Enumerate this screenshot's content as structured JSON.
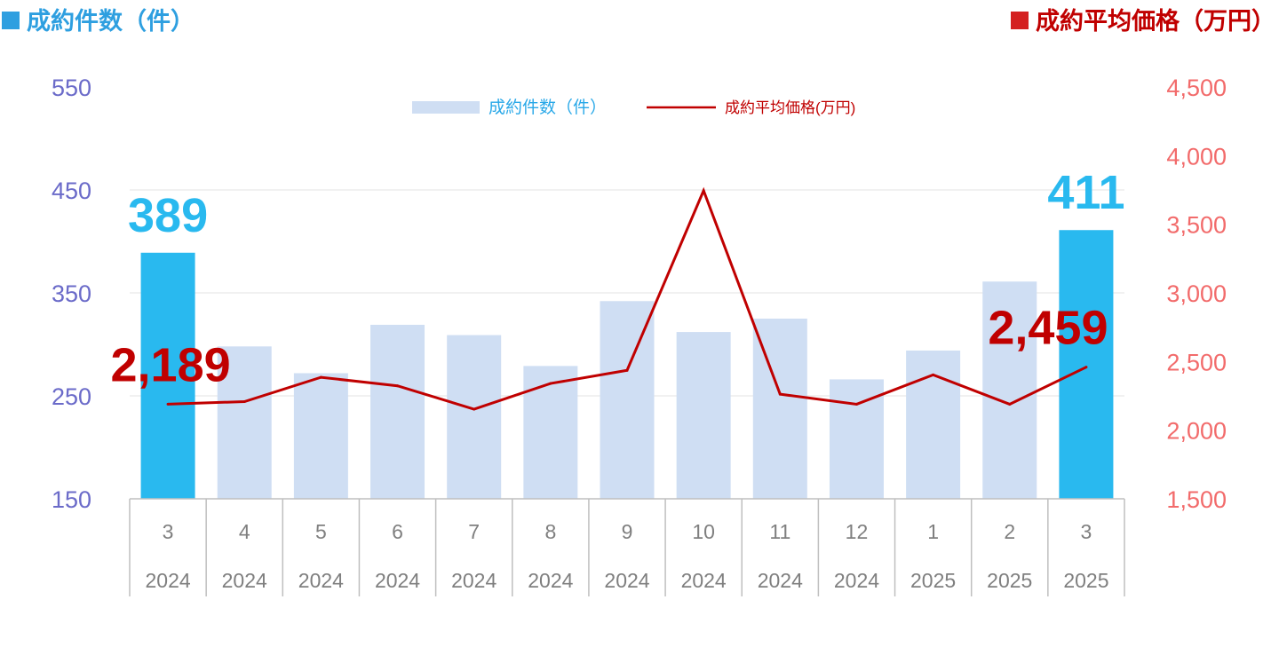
{
  "header": {
    "left_title": "成約件数（件）",
    "right_title": "成約平均価格（万円）"
  },
  "chart_data": {
    "type": "bar+line",
    "categories": [
      {
        "month": "3",
        "year": "2024"
      },
      {
        "month": "4",
        "year": "2024"
      },
      {
        "month": "5",
        "year": "2024"
      },
      {
        "month": "6",
        "year": "2024"
      },
      {
        "month": "7",
        "year": "2024"
      },
      {
        "month": "8",
        "year": "2024"
      },
      {
        "month": "9",
        "year": "2024"
      },
      {
        "month": "10",
        "year": "2024"
      },
      {
        "month": "11",
        "year": "2024"
      },
      {
        "month": "12",
        "year": "2024"
      },
      {
        "month": "1",
        "year": "2025"
      },
      {
        "month": "2",
        "year": "2025"
      },
      {
        "month": "3",
        "year": "2025"
      }
    ],
    "series": [
      {
        "name": "成約件数（件）",
        "type": "bar",
        "axis": "left",
        "color": "#cfdef3",
        "highlight_color": "#29b9ef",
        "highlight_indices": [
          0,
          12
        ],
        "values": [
          389,
          298,
          272,
          319,
          309,
          279,
          342,
          312,
          325,
          266,
          294,
          361,
          411
        ]
      },
      {
        "name": "成約平均価格(万円)",
        "type": "line",
        "axis": "right",
        "color": "#c00000",
        "values": [
          2189,
          2208,
          2385,
          2323,
          2153,
          2340,
          2436,
          3745,
          2262,
          2189,
          2403,
          2189,
          2459
        ]
      }
    ],
    "y_left": {
      "min": 150,
      "max": 550,
      "ticks": [
        "150",
        "250",
        "350",
        "450",
        "550"
      ]
    },
    "y_right": {
      "min": 1500,
      "max": 4500,
      "ticks": [
        "1,500",
        "2,000",
        "2,500",
        "3,000",
        "3,500",
        "4,000",
        "4,500"
      ]
    },
    "annotations": [
      {
        "index": 0,
        "series": "bar",
        "text": "389",
        "color": "#29b9ef"
      },
      {
        "index": 12,
        "series": "bar",
        "text": "411",
        "color": "#29b9ef"
      },
      {
        "index": 0,
        "series": "line",
        "text": "2,189",
        "color": "#c00000"
      },
      {
        "index": 12,
        "series": "line",
        "text": "2,459",
        "color": "#c00000"
      }
    ],
    "grid": true,
    "legend_position": "top-center"
  }
}
